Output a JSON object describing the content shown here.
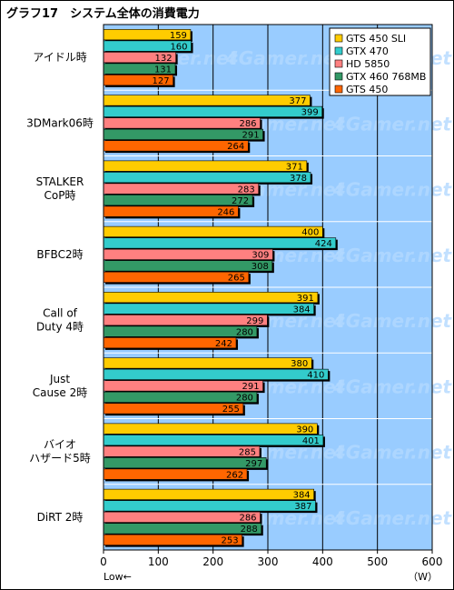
{
  "chart_data": {
    "type": "bar",
    "orientation": "horizontal",
    "title": "グラフ17　システム全体の消費電力",
    "categories": [
      [
        "アイドル時"
      ],
      [
        "3DMark06時"
      ],
      [
        "STALKER",
        "CoP時"
      ],
      [
        "BFBC2時"
      ],
      [
        "Call of",
        "Duty 4時"
      ],
      [
        "Just",
        "Cause 2時"
      ],
      [
        "バイオ",
        "ハザード5時"
      ],
      [
        "DiRT 2時"
      ]
    ],
    "series": [
      {
        "name": "GTS 450 SLI",
        "color": "#ffcc00",
        "values": [
          159,
          377,
          371,
          400,
          391,
          380,
          390,
          384
        ]
      },
      {
        "name": "GTX 470",
        "color": "#33cccc",
        "values": [
          160,
          399,
          378,
          424,
          384,
          410,
          401,
          387
        ]
      },
      {
        "name": "HD 5850",
        "color": "#ff8080",
        "values": [
          132,
          286,
          283,
          309,
          299,
          291,
          285,
          286
        ]
      },
      {
        "name": "GTX 460 768MB",
        "color": "#339966",
        "values": [
          131,
          291,
          272,
          308,
          280,
          280,
          297,
          288
        ]
      },
      {
        "name": "GTS 450",
        "color": "#ff6600",
        "values": [
          127,
          264,
          246,
          265,
          242,
          255,
          262,
          253
        ]
      }
    ],
    "xlim": [
      0,
      600
    ],
    "xticks": [
      0,
      100,
      200,
      300,
      400,
      500,
      600
    ],
    "x_note": "Low←",
    "x_unit": "（W）",
    "watermark": "4Gamer.net",
    "legend_position": "top-right",
    "plot_background": "#99ccff",
    "grid": true
  }
}
